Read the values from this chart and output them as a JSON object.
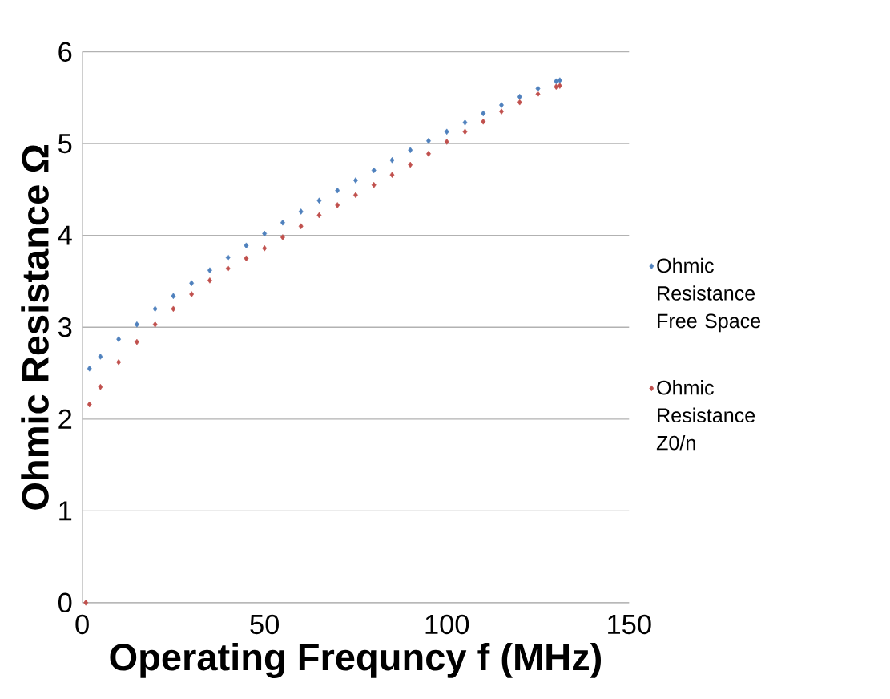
{
  "chart_data": {
    "type": "scatter",
    "xlabel": "Operating Frequncy f (MHz)",
    "ylabel": "Ohmic Resistance Ω",
    "xlim": [
      0,
      150
    ],
    "ylim": [
      0,
      6
    ],
    "xticks": [
      0,
      50,
      100,
      150
    ],
    "yticks": [
      0,
      1,
      2,
      3,
      4,
      5,
      6
    ],
    "grid": "y",
    "legend": "right",
    "marker": "diamond",
    "series": [
      {
        "name": "Ohmic Resistance Free Space",
        "color": "#4f81bd",
        "x": [
          2,
          5,
          10,
          15,
          20,
          25,
          30,
          35,
          40,
          45,
          50,
          55,
          60,
          65,
          70,
          75,
          80,
          85,
          90,
          95,
          100,
          105,
          110,
          115,
          120,
          125,
          130,
          131
        ],
        "values": [
          2.55,
          2.68,
          2.87,
          3.03,
          3.2,
          3.34,
          3.48,
          3.62,
          3.76,
          3.89,
          4.02,
          4.14,
          4.26,
          4.38,
          4.49,
          4.6,
          4.71,
          4.82,
          4.93,
          5.03,
          5.13,
          5.23,
          5.33,
          5.42,
          5.51,
          5.6,
          5.68,
          5.69
        ]
      },
      {
        "name": "Ohmic Resistance Z0/n",
        "color": "#c0504d",
        "x": [
          1,
          2,
          5,
          10,
          15,
          20,
          25,
          30,
          35,
          40,
          45,
          50,
          55,
          60,
          65,
          70,
          75,
          80,
          85,
          90,
          95,
          100,
          105,
          110,
          115,
          120,
          125,
          130,
          131
        ],
        "values": [
          0,
          2.16,
          2.35,
          2.62,
          2.84,
          3.03,
          3.2,
          3.36,
          3.51,
          3.64,
          3.75,
          3.86,
          3.98,
          4.1,
          4.22,
          4.33,
          4.44,
          4.55,
          4.66,
          4.77,
          4.89,
          5.02,
          5.13,
          5.24,
          5.35,
          5.45,
          5.54,
          5.62,
          5.63
        ]
      }
    ]
  }
}
